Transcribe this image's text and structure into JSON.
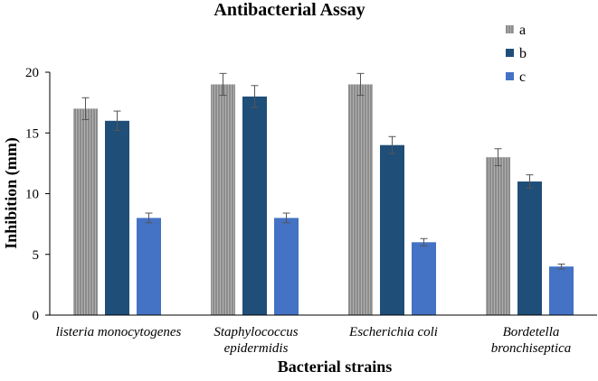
{
  "chart_data": {
    "type": "bar",
    "title": "Antibacterial Assay",
    "xlabel": "Bacterial strains",
    "ylabel": "Inhibition  (mm)",
    "ylim": [
      0,
      20
    ],
    "yticks": [
      0,
      5,
      10,
      15,
      20
    ],
    "grid": false,
    "legend_position": "top-right",
    "categories": [
      [
        "listeria monocytogenes"
      ],
      [
        "Staphylococcus",
        "epidermidis"
      ],
      [
        "Escherichia coli"
      ],
      [
        "Bordetella",
        "bronchiseptica"
      ]
    ],
    "series": [
      {
        "name": "a",
        "color": "#8c8c8c",
        "pattern": "vertical-stripes",
        "values": [
          17,
          19,
          19,
          13
        ],
        "errors": [
          0.9,
          0.9,
          0.9,
          0.7
        ]
      },
      {
        "name": "b",
        "color": "#1f4e79",
        "values": [
          16,
          18,
          14,
          11
        ],
        "errors": [
          0.8,
          0.9,
          0.7,
          0.55
        ]
      },
      {
        "name": "c",
        "color": "#4472c4",
        "values": [
          8,
          8,
          6,
          4
        ],
        "errors": [
          0.4,
          0.4,
          0.3,
          0.2
        ]
      }
    ]
  }
}
